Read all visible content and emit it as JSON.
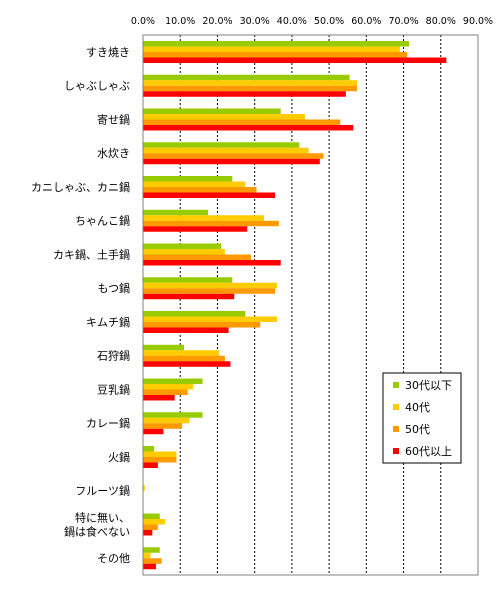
{
  "chart_data": {
    "type": "bar",
    "orientation": "horizontal",
    "title": "",
    "xlabel": "",
    "ylabel": "",
    "xlim": [
      0,
      90
    ],
    "tick_values": [
      0,
      10,
      20,
      30,
      40,
      50,
      60,
      70,
      80,
      90
    ],
    "tick_labels": [
      "0.0%",
      "10.0%",
      "20.0%",
      "30.0%",
      "40.0%",
      "50.0%",
      "60.0%",
      "70.0%",
      "80.0%",
      "90.0%"
    ],
    "grid": true,
    "legend_position": "right",
    "categories": [
      "すき焼き",
      "しゃぶしゃぶ",
      "寄せ鍋",
      "水炊き",
      "カニしゃぶ、カニ鍋",
      "ちゃんこ鍋",
      "カキ鍋、土手鍋",
      "もつ鍋",
      "キムチ鍋",
      "石狩鍋",
      "豆乳鍋",
      "カレー鍋",
      "火鍋",
      "フルーツ鍋",
      "特に無い、\n鍋は食べない",
      "その他"
    ],
    "category_lines": [
      [
        "すき焼き"
      ],
      [
        "しゃぶしゃぶ"
      ],
      [
        "寄せ鍋"
      ],
      [
        "水炊き"
      ],
      [
        "カニしゃぶ、カニ鍋"
      ],
      [
        "ちゃんこ鍋"
      ],
      [
        "カキ鍋、土手鍋"
      ],
      [
        "もつ鍋"
      ],
      [
        "キムチ鍋"
      ],
      [
        "石狩鍋"
      ],
      [
        "豆乳鍋"
      ],
      [
        "カレー鍋"
      ],
      [
        "火鍋"
      ],
      [
        "フルーツ鍋"
      ],
      [
        "特に無い、",
        "鍋は食べない"
      ],
      [
        "その他"
      ]
    ],
    "series": [
      {
        "name": "30代以下",
        "color": "#99cc00",
        "values": [
          71.5,
          55.5,
          37.0,
          42.0,
          24.0,
          17.5,
          21.0,
          24.0,
          27.5,
          11.0,
          16.0,
          16.0,
          3.0,
          0.0,
          4.5,
          4.5
        ]
      },
      {
        "name": "40代",
        "color": "#ffcc00",
        "values": [
          69.0,
          57.5,
          43.5,
          44.5,
          27.5,
          32.5,
          22.0,
          36.0,
          36.0,
          20.5,
          13.5,
          12.5,
          9.0,
          0.5,
          6.0,
          2.0
        ]
      },
      {
        "name": "50代",
        "color": "#ff9900",
        "values": [
          71.0,
          57.5,
          53.0,
          48.5,
          30.5,
          36.5,
          29.0,
          35.5,
          31.5,
          22.0,
          12.0,
          10.5,
          9.0,
          0.0,
          4.0,
          5.0
        ]
      },
      {
        "name": "60代以上",
        "color": "#ff0000",
        "values": [
          81.5,
          54.5,
          56.5,
          47.5,
          35.5,
          28.0,
          37.0,
          24.5,
          23.0,
          23.5,
          8.5,
          5.5,
          4.0,
          0.0,
          2.5,
          3.5
        ]
      }
    ]
  }
}
